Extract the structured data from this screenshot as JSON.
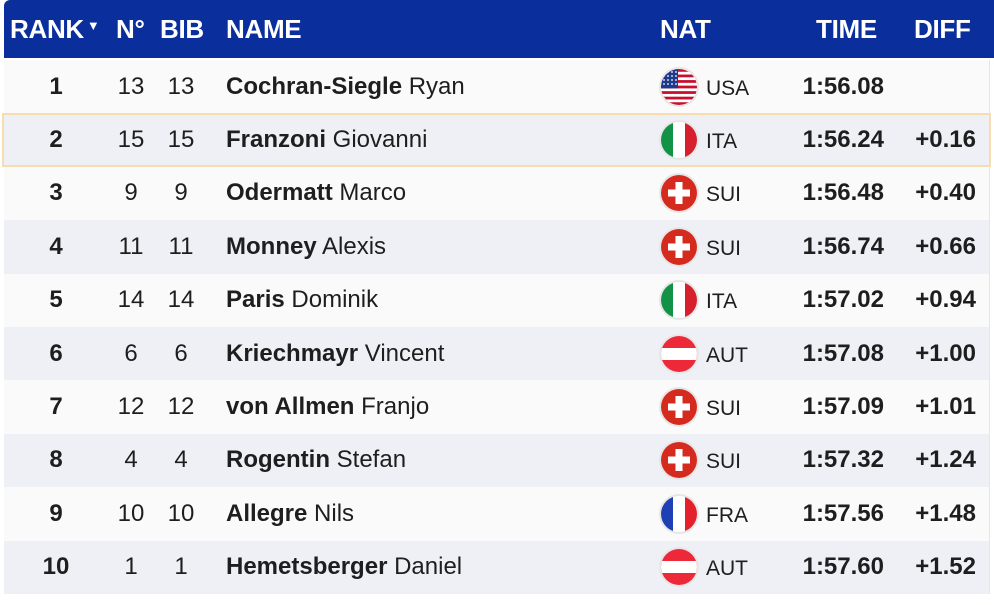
{
  "header": {
    "rank": "RANK",
    "sort_indicator": "▼",
    "no": "N°",
    "bib": "BIB",
    "name": "NAME",
    "nat": "NAT",
    "time": "TIME",
    "diff": "DIFF"
  },
  "colors": {
    "header_bg": "#0a2f9c",
    "row_odd": "#fafafa",
    "row_even": "#eef0f6",
    "highlight_border": "#f6dcaf"
  },
  "rows": [
    {
      "rank": "1",
      "no": "13",
      "bib": "13",
      "last": "Cochran-Siegle",
      "first": "Ryan",
      "nat": "USA",
      "flag": "usa-flag-icon",
      "time": "1:56.08",
      "diff": ""
    },
    {
      "rank": "2",
      "no": "15",
      "bib": "15",
      "last": "Franzoni",
      "first": "Giovanni",
      "nat": "ITA",
      "flag": "italy-flag-icon",
      "time": "1:56.24",
      "diff": "+0.16",
      "highlighted": true
    },
    {
      "rank": "3",
      "no": "9",
      "bib": "9",
      "last": "Odermatt",
      "first": "Marco",
      "nat": "SUI",
      "flag": "switzerland-flag-icon",
      "time": "1:56.48",
      "diff": "+0.40"
    },
    {
      "rank": "4",
      "no": "11",
      "bib": "11",
      "last": "Monney",
      "first": "Alexis",
      "nat": "SUI",
      "flag": "switzerland-flag-icon",
      "time": "1:56.74",
      "diff": "+0.66"
    },
    {
      "rank": "5",
      "no": "14",
      "bib": "14",
      "last": "Paris",
      "first": "Dominik",
      "nat": "ITA",
      "flag": "italy-flag-icon",
      "time": "1:57.02",
      "diff": "+0.94"
    },
    {
      "rank": "6",
      "no": "6",
      "bib": "6",
      "last": "Kriechmayr",
      "first": "Vincent",
      "nat": "AUT",
      "flag": "austria-flag-icon",
      "time": "1:57.08",
      "diff": "+1.00"
    },
    {
      "rank": "7",
      "no": "12",
      "bib": "12",
      "last": "von Allmen",
      "first": "Franjo",
      "nat": "SUI",
      "flag": "switzerland-flag-icon",
      "time": "1:57.09",
      "diff": "+1.01"
    },
    {
      "rank": "8",
      "no": "4",
      "bib": "4",
      "last": "Rogentin",
      "first": "Stefan",
      "nat": "SUI",
      "flag": "switzerland-flag-icon",
      "time": "1:57.32",
      "diff": "+1.24"
    },
    {
      "rank": "9",
      "no": "10",
      "bib": "10",
      "last": "Allegre",
      "first": "Nils",
      "nat": "FRA",
      "flag": "france-flag-icon",
      "time": "1:57.56",
      "diff": "+1.48"
    },
    {
      "rank": "10",
      "no": "1",
      "bib": "1",
      "last": "Hemetsberger",
      "first": "Daniel",
      "nat": "AUT",
      "flag": "austria-flag-icon",
      "time": "1:57.60",
      "diff": "+1.52"
    }
  ]
}
